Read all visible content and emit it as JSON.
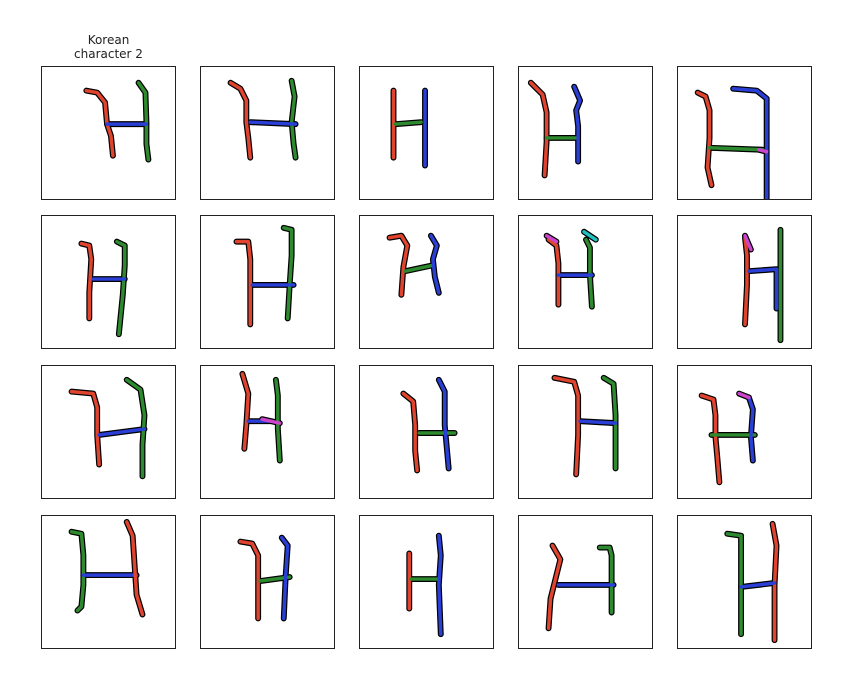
{
  "title": "Korean\ncharacter 2",
  "colors": {
    "frame": "#222222",
    "stroke_outline": "#000000",
    "stroke_1": "#e0442e",
    "stroke_2": "#2e8a2e",
    "stroke_3": "#2a3fd6",
    "stroke_4": "#cc44cc",
    "stroke_5": "#22c1c1"
  },
  "samples": [
    {
      "id": "r1c1"
    },
    {
      "id": "r1c2"
    },
    {
      "id": "r1c3"
    },
    {
      "id": "r1c4"
    },
    {
      "id": "r1c5"
    },
    {
      "id": "r2c1"
    },
    {
      "id": "r2c2"
    },
    {
      "id": "r2c3"
    },
    {
      "id": "r2c4"
    },
    {
      "id": "r2c5"
    },
    {
      "id": "r3c1"
    },
    {
      "id": "r3c2"
    },
    {
      "id": "r3c3"
    },
    {
      "id": "r3c4"
    },
    {
      "id": "r3c5"
    },
    {
      "id": "r4c1"
    },
    {
      "id": "r4c2"
    },
    {
      "id": "r4c3"
    },
    {
      "id": "r4c4"
    },
    {
      "id": "r4c5"
    }
  ]
}
